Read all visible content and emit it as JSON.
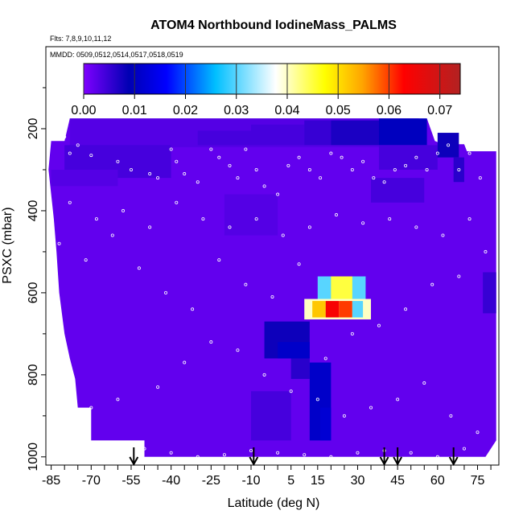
{
  "chart_data": {
    "type": "heatmap",
    "title": "ATOM4 Northbound IodineMass_PALMS",
    "subtitle_flights": "Flts: 7,8,9,10,11,12",
    "subtitle_dates": "MMDD: 0509,0512,0514,0517,0518,0519",
    "xlabel": "Latitude (deg N)",
    "ylabel": "PSXC (mbar)",
    "x_ticks": [
      -85,
      -70,
      -55,
      -40,
      -25,
      -10,
      5,
      15,
      30,
      45,
      60,
      75
    ],
    "y_ticks": [
      200,
      400,
      600,
      800,
      1000
    ],
    "xlim": [
      -87,
      83
    ],
    "ylim": [
      1020,
      0
    ],
    "colorbar": {
      "ticks": [
        0.0,
        0.01,
        0.02,
        0.03,
        0.04,
        0.05,
        0.06,
        0.07
      ],
      "tick_labels": [
        "0.00",
        "0.01",
        "0.02",
        "0.03",
        "0.04",
        "0.05",
        "0.06",
        "0.07"
      ],
      "range": [
        0.0,
        0.074
      ],
      "colors": [
        "#7f00ff",
        "#0000b3",
        "#0000ff",
        "#00bfff",
        "#ffffff",
        "#ffff00",
        "#ffa500",
        "#ff0000",
        "#b22222"
      ]
    },
    "background_value": 0.002,
    "cells": [
      {
        "lat": [
          -78,
          53
        ],
        "p": [
          175,
          245
        ],
        "v": 0.003
      },
      {
        "lat": [
          -30,
          -10
        ],
        "p": [
          205,
          240
        ],
        "v": 0.004
      },
      {
        "lat": [
          -10,
          10
        ],
        "p": [
          190,
          240
        ],
        "v": 0.004
      },
      {
        "lat": [
          10,
          20
        ],
        "p": [
          180,
          240
        ],
        "v": 0.005
      },
      {
        "lat": [
          20,
          38
        ],
        "p": [
          180,
          240
        ],
        "v": 0.007
      },
      {
        "lat": [
          38,
          56
        ],
        "p": [
          175,
          240
        ],
        "v": 0.01
      },
      {
        "lat": [
          38,
          60
        ],
        "p": [
          240,
          300
        ],
        "v": 0.004
      },
      {
        "lat": [
          60,
          68
        ],
        "p": [
          210,
          270
        ],
        "v": 0.008
      },
      {
        "lat": [
          66,
          70
        ],
        "p": [
          270,
          330
        ],
        "v": 0.006
      },
      {
        "lat": [
          -80,
          -40
        ],
        "p": [
          240,
          320
        ],
        "v": 0.004
      },
      {
        "lat": [
          -85,
          -60
        ],
        "p": [
          300,
          340
        ],
        "v": 0.003
      },
      {
        "lat": [
          35,
          55
        ],
        "p": [
          320,
          380
        ],
        "v": 0.004
      },
      {
        "lat": [
          -20,
          0
        ],
        "p": [
          360,
          460
        ],
        "v": 0.003
      },
      {
        "lat": [
          -5,
          12
        ],
        "p": [
          670,
          760
        ],
        "v": 0.008
      },
      {
        "lat": [
          0,
          12
        ],
        "p": [
          720,
          760
        ],
        "v": 0.011
      },
      {
        "lat": [
          5,
          12
        ],
        "p": [
          760,
          810
        ],
        "v": 0.006
      },
      {
        "lat": [
          12,
          20
        ],
        "p": [
          770,
          960
        ],
        "v": 0.011
      },
      {
        "lat": [
          16,
          20
        ],
        "p": [
          880,
          960
        ],
        "v": 0.012
      },
      {
        "lat": [
          -10,
          5
        ],
        "p": [
          840,
          960
        ],
        "v": 0.004
      },
      {
        "lat": [
          15,
          33
        ],
        "p": [
          560,
          630
        ],
        "v": 0.03
      },
      {
        "lat": [
          20,
          28
        ],
        "p": [
          560,
          615
        ],
        "v": 0.045
      },
      {
        "lat": [
          10,
          35
        ],
        "p": [
          615,
          665
        ],
        "v": 0.04
      },
      {
        "lat": [
          13,
          18
        ],
        "p": [
          620,
          660
        ],
        "v": 0.052
      },
      {
        "lat": [
          18,
          23
        ],
        "p": [
          620,
          660
        ],
        "v": 0.064
      },
      {
        "lat": [
          23,
          28
        ],
        "p": [
          620,
          660
        ],
        "v": 0.06
      },
      {
        "lat": [
          28,
          32
        ],
        "p": [
          620,
          660
        ],
        "v": 0.03
      },
      {
        "lat": [
          77,
          82
        ],
        "p": [
          550,
          650
        ],
        "v": 0.005
      }
    ],
    "profile_points": [
      [
        -80,
        220
      ],
      [
        -75,
        240
      ],
      [
        -78,
        260
      ],
      [
        -70,
        265
      ],
      [
        -60,
        280
      ],
      [
        -55,
        300
      ],
      [
        -48,
        310
      ],
      [
        -45,
        320
      ],
      [
        -40,
        250
      ],
      [
        -38,
        280
      ],
      [
        -35,
        310
      ],
      [
        -30,
        330
      ],
      [
        -25,
        250
      ],
      [
        -22,
        270
      ],
      [
        -18,
        290
      ],
      [
        -15,
        320
      ],
      [
        -12,
        250
      ],
      [
        -8,
        300
      ],
      [
        -5,
        340
      ],
      [
        0,
        360
      ],
      [
        4,
        290
      ],
      [
        8,
        270
      ],
      [
        12,
        300
      ],
      [
        16,
        320
      ],
      [
        20,
        260
      ],
      [
        24,
        270
      ],
      [
        28,
        300
      ],
      [
        32,
        280
      ],
      [
        36,
        320
      ],
      [
        40,
        330
      ],
      [
        44,
        300
      ],
      [
        48,
        290
      ],
      [
        52,
        270
      ],
      [
        56,
        300
      ],
      [
        60,
        260
      ],
      [
        64,
        240
      ],
      [
        68,
        300
      ],
      [
        72,
        260
      ],
      [
        76,
        320
      ],
      [
        -82,
        480
      ],
      [
        -72,
        520
      ],
      [
        -62,
        460
      ],
      [
        -52,
        540
      ],
      [
        -42,
        600
      ],
      [
        -32,
        640
      ],
      [
        -22,
        520
      ],
      [
        -12,
        580
      ],
      [
        -2,
        610
      ],
      [
        8,
        530
      ],
      [
        18,
        760
      ],
      [
        28,
        700
      ],
      [
        38,
        680
      ],
      [
        48,
        640
      ],
      [
        58,
        580
      ],
      [
        68,
        560
      ],
      [
        78,
        500
      ],
      [
        -80,
        900
      ],
      [
        -70,
        880
      ],
      [
        -60,
        860
      ],
      [
        -45,
        830
      ],
      [
        -35,
        770
      ],
      [
        -25,
        720
      ],
      [
        -15,
        740
      ],
      [
        -5,
        800
      ],
      [
        5,
        840
      ],
      [
        15,
        860
      ],
      [
        25,
        900
      ],
      [
        35,
        880
      ],
      [
        45,
        860
      ],
      [
        55,
        820
      ],
      [
        65,
        900
      ],
      [
        75,
        940
      ],
      [
        -50,
        980
      ],
      [
        -40,
        990
      ],
      [
        -30,
        1000
      ],
      [
        -20,
        995
      ],
      [
        -10,
        985
      ],
      [
        0,
        990
      ],
      [
        10,
        995
      ],
      [
        20,
        1000
      ],
      [
        30,
        990
      ],
      [
        40,
        985
      ],
      [
        50,
        990
      ],
      [
        60,
        1000
      ],
      [
        70,
        980
      ],
      [
        -78,
        380
      ],
      [
        -68,
        420
      ],
      [
        -58,
        400
      ],
      [
        -48,
        440
      ],
      [
        -38,
        380
      ],
      [
        -28,
        420
      ],
      [
        -18,
        440
      ],
      [
        -8,
        420
      ],
      [
        2,
        460
      ],
      [
        12,
        440
      ],
      [
        22,
        410
      ],
      [
        32,
        430
      ],
      [
        42,
        420
      ],
      [
        52,
        440
      ],
      [
        62,
        460
      ],
      [
        72,
        420
      ]
    ],
    "arrow_latitudes": [
      -54,
      -9,
      40,
      45,
      66
    ]
  }
}
